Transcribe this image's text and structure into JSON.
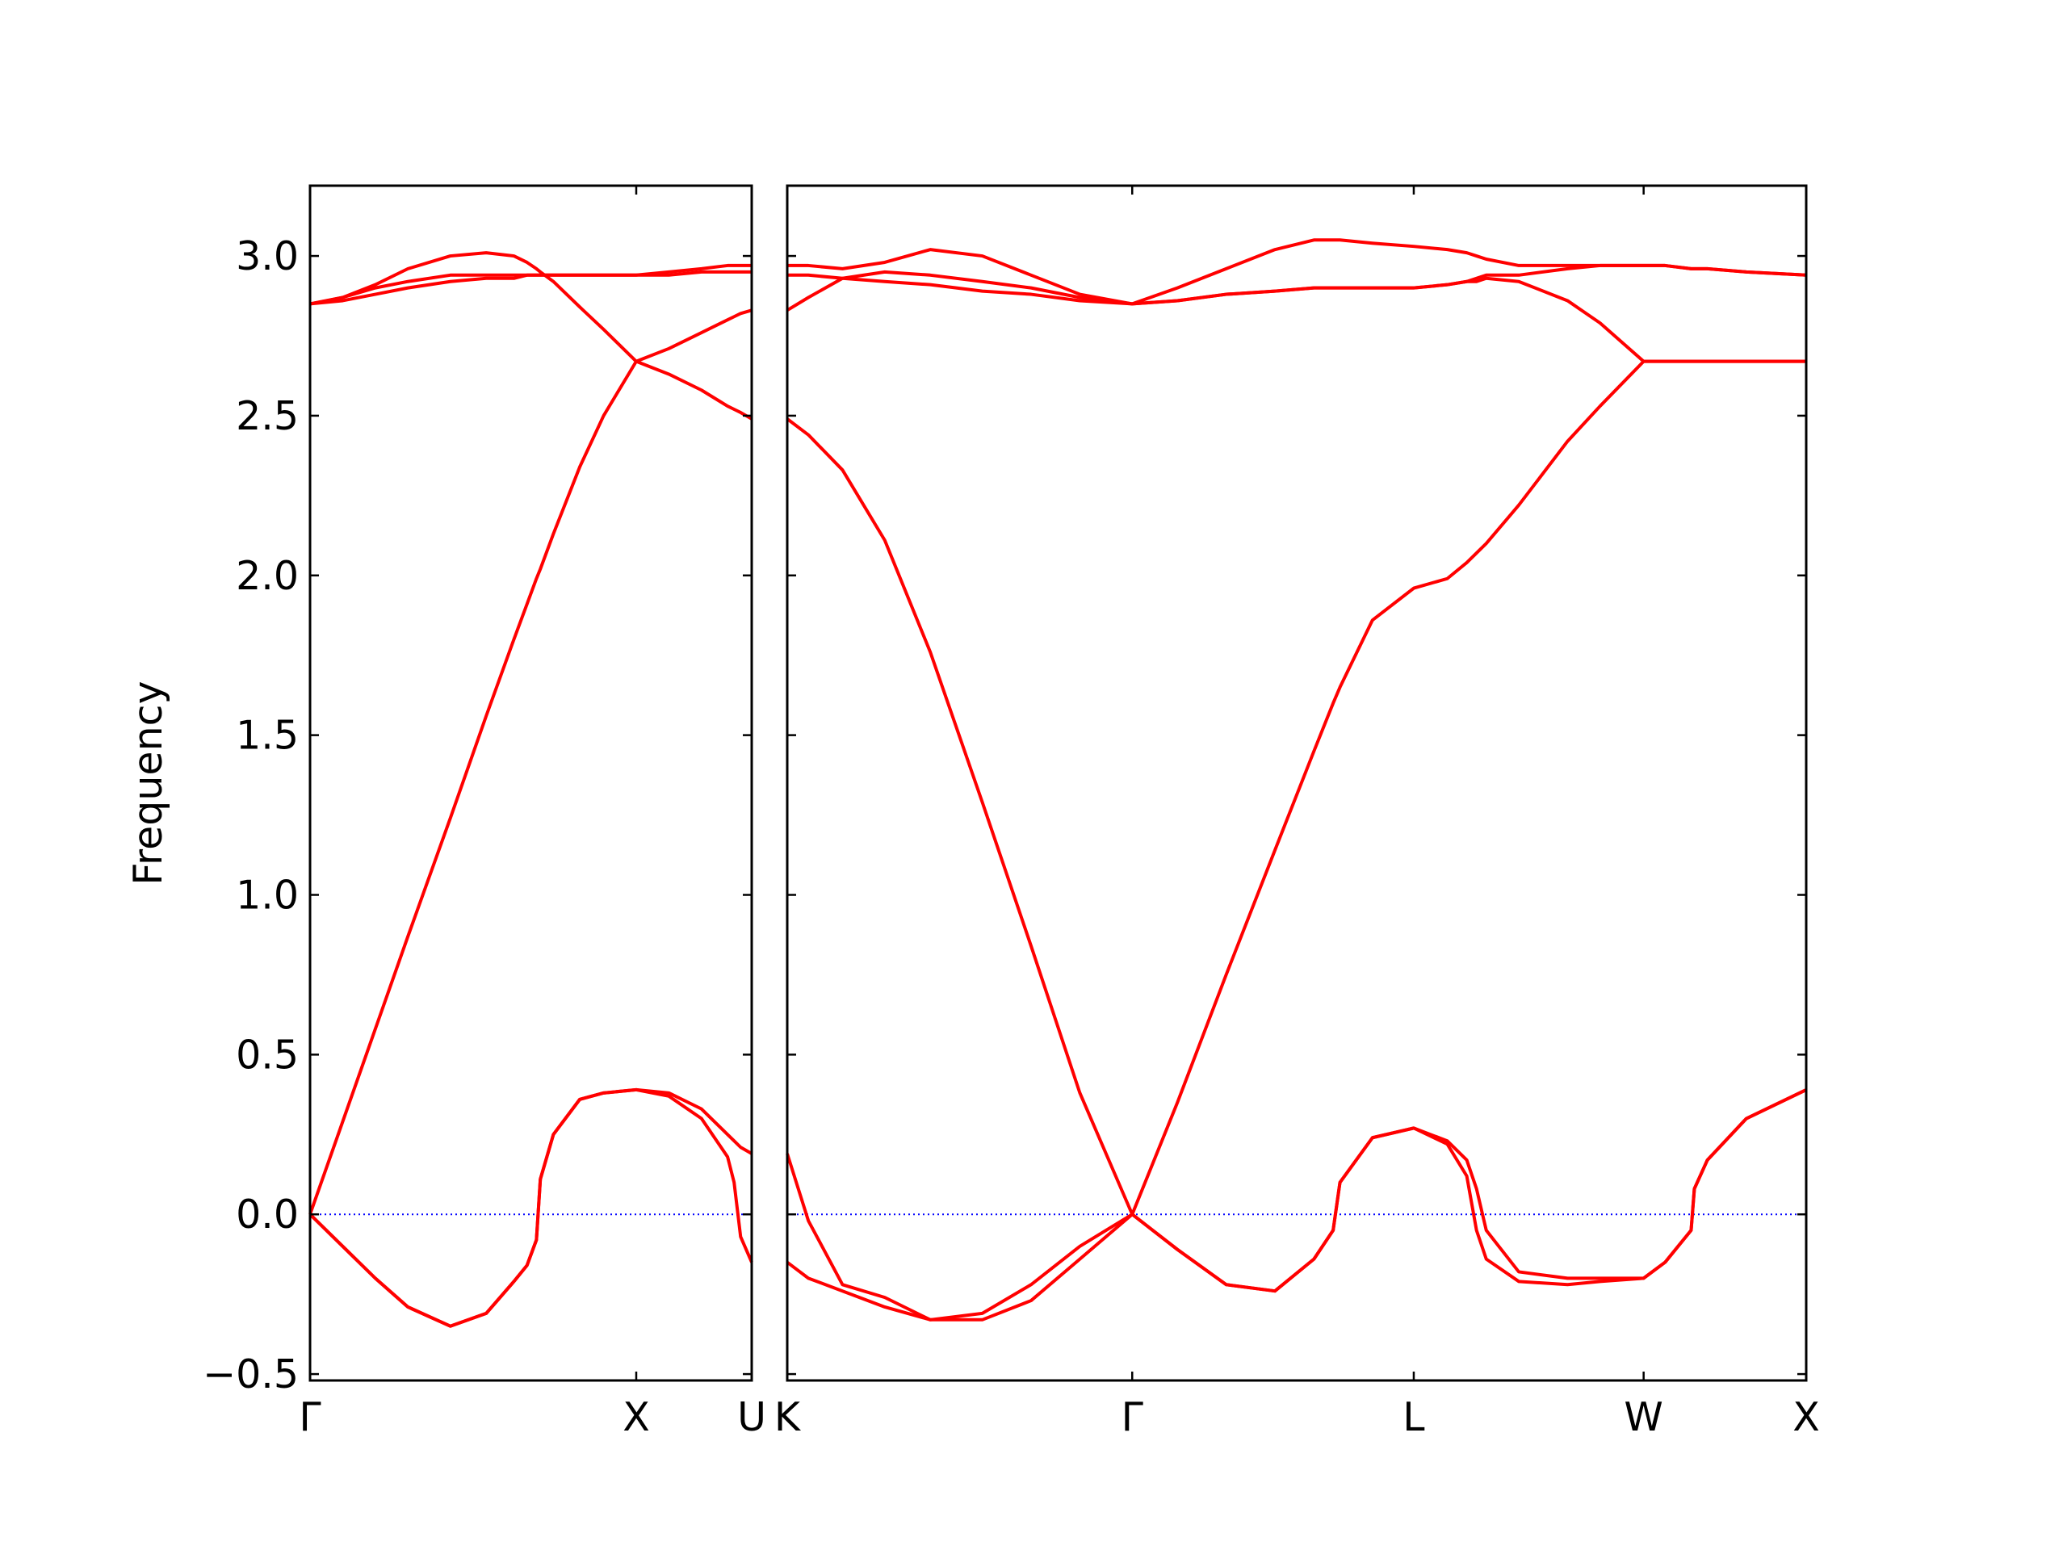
{
  "chart_data": [
    {
      "type": "line",
      "ylabel": "Frequency",
      "x": [
        0,
        0.1,
        0.2,
        0.3,
        0.43,
        0.54,
        0.625,
        0.665,
        0.694,
        0.706,
        0.746,
        0.827,
        0.9,
        1.0,
        1.1,
        1.2,
        1.28,
        1.3,
        1.32,
        1.354
      ],
      "xlim": [
        0,
        1.354
      ],
      "xticks": [
        {
          "value": 0,
          "label": "Γ"
        },
        {
          "value": 1,
          "label": "X"
        },
        {
          "value": 1.354,
          "label": "U"
        }
      ],
      "ylim": [
        -0.52,
        3.22
      ],
      "yticks": [
        {
          "value": -0.5,
          "label": "−0.5"
        },
        {
          "value": 0,
          "label": "0.0"
        },
        0.5,
        {
          "value": 1,
          "label": "1.0"
        },
        1.5,
        {
          "value": 2,
          "label": "2.0"
        },
        2.5,
        {
          "value": 3,
          "label": "3.0"
        }
      ],
      "reference_line": {
        "value": 0,
        "color": "#0000ff"
      },
      "series": [
        {
          "color": "#ff0000",
          "values": [
            0,
            -0.1,
            -0.2,
            -0.29,
            -0.35,
            -0.31,
            -0.21,
            -0.16,
            -0.08,
            0.11,
            0.25,
            0.36,
            0.38,
            0.39,
            0.37,
            0.3,
            0.18,
            0.1,
            -0.07,
            -0.15
          ]
        },
        {
          "color": "#ff0000",
          "values": [
            0,
            -0.1,
            -0.2,
            -0.29,
            -0.35,
            -0.31,
            -0.21,
            -0.16,
            -0.08,
            0.11,
            0.25,
            0.36,
            0.38,
            0.39,
            0.38,
            0.33,
            0.25,
            0.23,
            0.21,
            0.19
          ]
        },
        {
          "color": "#ff0000",
          "values": [
            0,
            0.29,
            0.58,
            0.87,
            1.24,
            1.56,
            1.8,
            1.91,
            1.99,
            2.02,
            2.13,
            2.34,
            2.5,
            2.67,
            2.63,
            2.58,
            2.53,
            2.52,
            2.51,
            2.49
          ]
        },
        {
          "color": "#ff0000",
          "values": [
            2.85,
            2.87,
            2.91,
            2.96,
            3.0,
            3.01,
            3.0,
            2.98,
            2.96,
            2.95,
            2.92,
            2.84,
            2.77,
            2.67,
            2.71,
            2.76,
            2.8,
            2.81,
            2.82,
            2.83
          ]
        },
        {
          "color": "#ff0000",
          "values": [
            2.85,
            2.87,
            2.9,
            2.92,
            2.94,
            2.94,
            2.94,
            2.94,
            2.94,
            2.94,
            2.94,
            2.94,
            2.94,
            2.94,
            2.95,
            2.96,
            2.97,
            2.97,
            2.97,
            2.97
          ]
        },
        {
          "color": "#ff0000",
          "values": [
            2.85,
            2.86,
            2.88,
            2.9,
            2.92,
            2.93,
            2.93,
            2.94,
            2.94,
            2.94,
            2.94,
            2.94,
            2.94,
            2.94,
            2.94,
            2.95,
            2.95,
            2.95,
            2.95,
            2.95
          ]
        }
      ]
    },
    {
      "type": "line",
      "x": [
        0,
        0.065,
        0.17,
        0.3,
        0.44,
        0.6,
        0.75,
        0.9,
        1.061,
        1.2,
        1.35,
        1.5,
        1.62,
        1.679,
        1.7,
        1.8,
        1.927,
        2.03,
        2.09,
        2.12,
        2.15,
        2.25,
        2.4,
        2.5,
        2.634,
        2.7,
        2.78,
        2.79,
        2.83,
        2.95,
        3.134
      ],
      "xlim": [
        0,
        3.134
      ],
      "xticks": [
        {
          "value": 0,
          "label": "K"
        },
        {
          "value": 1.061,
          "label": "Γ"
        },
        {
          "value": 1.927,
          "label": "L"
        },
        {
          "value": 2.634,
          "label": "W"
        },
        {
          "value": 3.134,
          "label": "X"
        }
      ],
      "ylim": [
        -0.52,
        3.22
      ],
      "yticks": [
        -0.5,
        0,
        0.5,
        1,
        1.5,
        2,
        2.5,
        3
      ],
      "reference_line": {
        "value": 0,
        "color": "#0000ff"
      },
      "series": [
        {
          "color": "#ff0000",
          "values": [
            -0.15,
            -0.2,
            -0.24,
            -0.29,
            -0.33,
            -0.33,
            -0.27,
            -0.14,
            0,
            -0.11,
            -0.22,
            -0.24,
            -0.14,
            -0.05,
            0.1,
            0.24,
            0.27,
            0.22,
            0.12,
            -0.05,
            -0.14,
            -0.21,
            -0.22,
            -0.21,
            -0.2,
            -0.15,
            -0.05,
            0.08,
            0.17,
            0.3,
            0.39
          ]
        },
        {
          "color": "#ff0000",
          "values": [
            0.19,
            -0.02,
            -0.22,
            -0.26,
            -0.33,
            -0.31,
            -0.22,
            -0.1,
            0,
            -0.11,
            -0.22,
            -0.24,
            -0.14,
            -0.05,
            0.1,
            0.24,
            0.27,
            0.23,
            0.17,
            0.08,
            -0.05,
            -0.18,
            -0.2,
            -0.2,
            -0.2,
            -0.15,
            -0.05,
            0.08,
            0.17,
            0.3,
            0.39
          ]
        },
        {
          "color": "#ff0000",
          "values": [
            2.49,
            2.44,
            2.33,
            2.11,
            1.76,
            1.29,
            0.84,
            0.38,
            0,
            0.35,
            0.75,
            1.14,
            1.45,
            1.6,
            1.65,
            1.86,
            1.96,
            1.99,
            2.04,
            2.07,
            2.1,
            2.22,
            2.42,
            2.53,
            2.67,
            2.67,
            2.67,
            2.67,
            2.67,
            2.67,
            2.67
          ]
        },
        {
          "color": "#ff0000",
          "values": [
            2.83,
            2.87,
            2.93,
            2.92,
            2.91,
            2.89,
            2.88,
            2.86,
            2.85,
            2.86,
            2.88,
            2.89,
            2.9,
            2.9,
            2.9,
            2.9,
            2.9,
            2.91,
            2.92,
            2.92,
            2.93,
            2.92,
            2.86,
            2.79,
            2.67,
            2.67,
            2.67,
            2.67,
            2.67,
            2.67,
            2.67
          ]
        },
        {
          "color": "#ff0000",
          "values": [
            2.94,
            2.94,
            2.93,
            2.95,
            2.94,
            2.92,
            2.9,
            2.87,
            2.85,
            2.86,
            2.88,
            2.89,
            2.9,
            2.9,
            2.9,
            2.9,
            2.9,
            2.91,
            2.92,
            2.93,
            2.94,
            2.94,
            2.96,
            2.97,
            2.97,
            2.97,
            2.96,
            2.96,
            2.96,
            2.95,
            2.94
          ]
        },
        {
          "color": "#ff0000",
          "values": [
            2.97,
            2.97,
            2.96,
            2.98,
            3.02,
            3.0,
            2.94,
            2.88,
            2.85,
            2.9,
            2.96,
            3.02,
            3.05,
            3.05,
            3.05,
            3.04,
            3.03,
            3.02,
            3.01,
            3.0,
            2.99,
            2.97,
            2.97,
            2.97,
            2.97,
            2.97,
            2.96,
            2.96,
            2.96,
            2.95,
            2.94
          ]
        }
      ]
    }
  ]
}
